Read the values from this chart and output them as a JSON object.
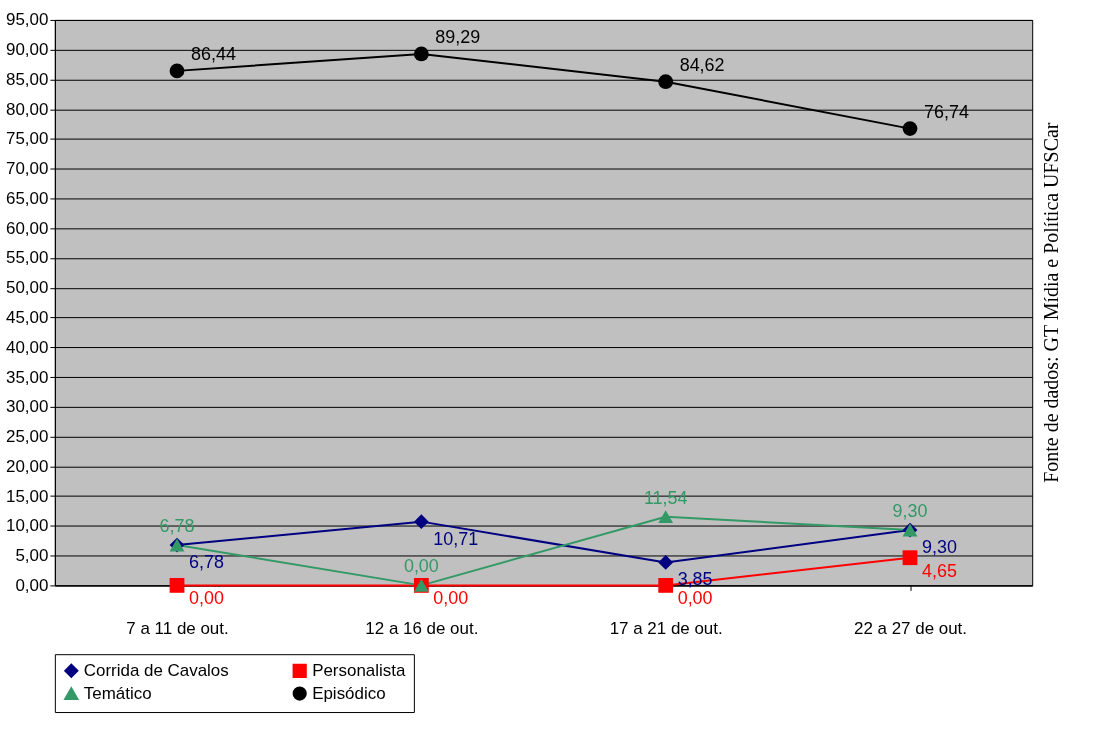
{
  "chart_data": {
    "type": "line",
    "categories": [
      "7 a 11 de out.",
      "12 a 16 de out.",
      "17 a 21 de out.",
      "22 a 27 de out."
    ],
    "series": [
      {
        "name": "Corrida de Cavalos",
        "color": "#000080",
        "marker": "diamond",
        "values": [
          6.78,
          10.71,
          3.85,
          9.3
        ],
        "value_labels": [
          "6,78",
          "10,71",
          "3,85",
          "9,30"
        ]
      },
      {
        "name": "Personalista",
        "color": "#ff0000",
        "marker": "square",
        "values": [
          0.0,
          0.0,
          0.0,
          4.65
        ],
        "value_labels": [
          "0,00",
          "0,00",
          "0,00",
          "4,65"
        ]
      },
      {
        "name": "Temático",
        "color": "#339966",
        "marker": "triangle",
        "values": [
          6.78,
          0.0,
          11.54,
          9.3
        ],
        "value_labels": [
          "6,78",
          "0,00",
          "11,54",
          "9,30"
        ]
      },
      {
        "name": "Episódico",
        "color": "#000000",
        "marker": "circle",
        "values": [
          86.44,
          89.29,
          84.62,
          76.74
        ],
        "value_labels": [
          "86,44",
          "89,29",
          "84,62",
          "76,74"
        ]
      }
    ],
    "ylim": [
      0,
      95
    ],
    "yticks": [
      {
        "value": 0,
        "label": "0,00"
      },
      {
        "value": 5,
        "label": "5,00"
      },
      {
        "value": 10,
        "label": "10,00"
      },
      {
        "value": 15,
        "label": "15,00"
      },
      {
        "value": 20,
        "label": "20,00"
      },
      {
        "value": 25,
        "label": "25,00"
      },
      {
        "value": 30,
        "label": "30,00"
      },
      {
        "value": 35,
        "label": "35,00"
      },
      {
        "value": 40,
        "label": "40,00"
      },
      {
        "value": 45,
        "label": "45,00"
      },
      {
        "value": 50,
        "label": "50,00"
      },
      {
        "value": 55,
        "label": "55,00"
      },
      {
        "value": 60,
        "label": "60,00"
      },
      {
        "value": 65,
        "label": "65,00"
      },
      {
        "value": 70,
        "label": "70,00"
      },
      {
        "value": 75,
        "label": "75,00"
      },
      {
        "value": 80,
        "label": "80,00"
      },
      {
        "value": 85,
        "label": "85,00"
      },
      {
        "value": 90,
        "label": "90,00"
      },
      {
        "value": 95,
        "label": "95,00"
      }
    ],
    "grid": "y",
    "legend": "bottom",
    "annotations": [
      "Fonte de dados: GT Mídia e Política UFSCar"
    ]
  }
}
